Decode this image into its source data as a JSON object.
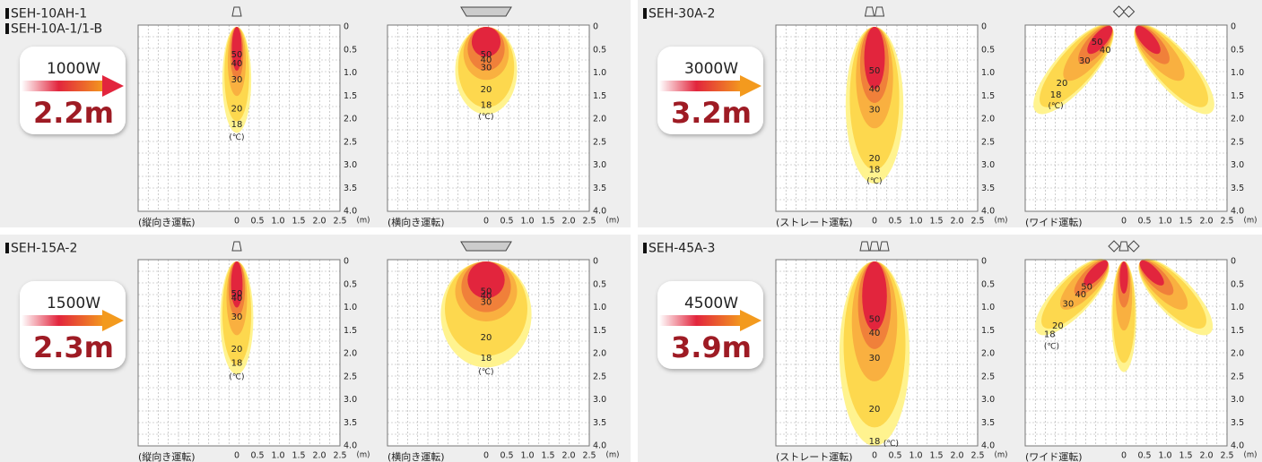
{
  "axis": {
    "y_labels": [
      "0",
      "0.5",
      "1.0",
      "1.5",
      "2.0",
      "2.5",
      "3.0",
      "3.5",
      "4.0"
    ],
    "x_labels": [
      "0",
      "0.5",
      "1.0",
      "1.5",
      "2.0",
      "2.5"
    ],
    "unit": "(m)"
  },
  "contour_labels": [
    "50",
    "40",
    "30",
    "20",
    "18"
  ],
  "temp_unit": "(℃)",
  "panels": [
    {
      "models": [
        "SEH-10AH-1",
        "SEH-10A-1/1-B"
      ],
      "power": "1000W",
      "reach": "2.2m",
      "charts": [
        {
          "mode": "(縦向き運転)"
        },
        {
          "mode": "(横向き運転)"
        }
      ]
    },
    {
      "models": [
        "SEH-30A-2"
      ],
      "power": "3000W",
      "reach": "3.2m",
      "charts": [
        {
          "mode": "(ストレート運転)"
        },
        {
          "mode": "(ワイド運転)"
        }
      ]
    },
    {
      "models": [
        "SEH-15A-2"
      ],
      "power": "1500W",
      "reach": "2.3m",
      "charts": [
        {
          "mode": "(縦向き運転)"
        },
        {
          "mode": "(横向き運転)"
        }
      ]
    },
    {
      "models": [
        "SEH-45A-3"
      ],
      "power": "4500W",
      "reach": "3.9m",
      "charts": [
        {
          "mode": "(ストレート運転)"
        },
        {
          "mode": "(ワイド運転)"
        }
      ]
    }
  ]
}
